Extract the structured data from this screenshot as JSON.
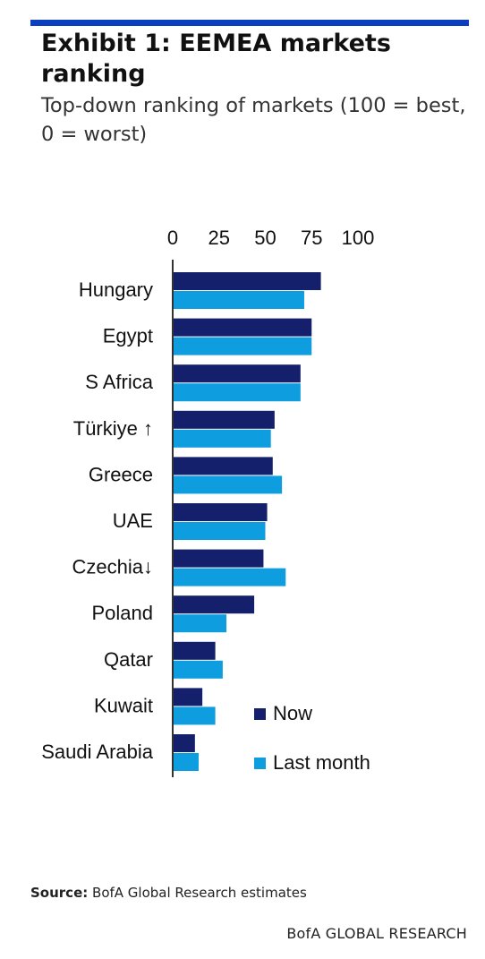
{
  "header": {
    "title": "Exhibit 1: EEMEA markets ranking",
    "subtitle": "Top-down ranking of markets (100 = best, 0 = worst)"
  },
  "chart_data": {
    "type": "bar",
    "orientation": "horizontal",
    "title": "",
    "xlabel": "",
    "ylabel": "",
    "xlim": [
      0,
      100
    ],
    "x_ticks": [
      "0",
      "25",
      "50",
      "75",
      "100"
    ],
    "axis_position": "top",
    "grid": false,
    "legend_placement": "bottom-right",
    "categories": [
      "Hungary",
      "Egypt",
      "S Africa",
      "Türkiye ↑",
      "Greece",
      "UAE",
      "Czechia↓",
      "Poland",
      "Qatar",
      "Kuwait",
      "Saudi Arabia"
    ],
    "series": [
      {
        "name": "Now",
        "color": "#14206b",
        "values": [
          80,
          75,
          69,
          55,
          54,
          51,
          49,
          44,
          23,
          16,
          12
        ]
      },
      {
        "name": "Last month",
        "color": "#0e9ee0",
        "values": [
          71,
          75,
          69,
          53,
          59,
          50,
          61,
          29,
          27,
          23,
          14
        ]
      }
    ]
  },
  "footer": {
    "source_label": "Source:",
    "source_text": "BofA Global Research estimates",
    "brand": "BofA GLOBAL RESEARCH"
  }
}
